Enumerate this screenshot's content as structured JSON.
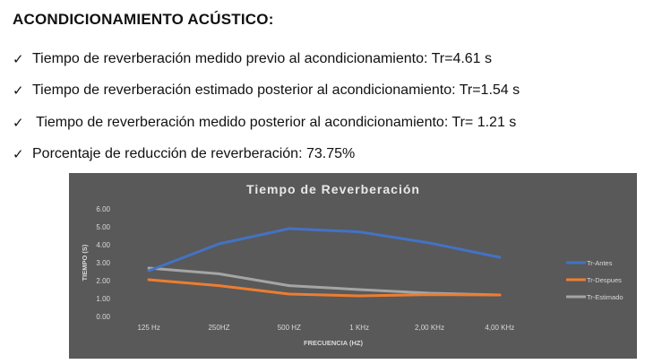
{
  "heading": "ACONDICIONAMIENTO ACÚSTICO:",
  "bullets": [
    {
      "icon": "check-icon",
      "text": "Tiempo de reverberación medido previo al acondicionamiento: Tr=4.61 s"
    },
    {
      "icon": "check-icon",
      "text": "Tiempo de reverberación estimado posterior al acondicionamiento: Tr=1.54 s"
    },
    {
      "icon": "check-icon",
      "text": " Tiempo de reverberación medido posterior al acondicionamiento: Tr= 1.21 s"
    },
    {
      "icon": "check-icon",
      "text": "Porcentaje de reducción de reverberación: 73.75%"
    }
  ],
  "chart_data": {
    "type": "line",
    "title": "Tiempo de Reverberación",
    "xlabel": "FRECUENCIA (HZ)",
    "ylabel": "TIEMPO (S)",
    "categories": [
      "125 Hz",
      "250HZ",
      "500 HZ",
      "1 KHz",
      "2,00 KHz",
      "4,00 KHz"
    ],
    "ylim": [
      0,
      6
    ],
    "yticks": [
      "0.00",
      "1.00",
      "2.00",
      "3.00",
      "4.00",
      "5.00",
      "6.00"
    ],
    "grid": false,
    "legend_position": "right",
    "series": [
      {
        "name": "Tr-Antes",
        "color": "#4472c4",
        "values": [
          2.55,
          4.05,
          4.9,
          4.72,
          4.1,
          3.3
        ]
      },
      {
        "name": "Tr-Despues",
        "color": "#ed7d31",
        "values": [
          2.05,
          1.72,
          1.25,
          1.15,
          1.22,
          1.2
        ]
      },
      {
        "name": "Tr-Estimado",
        "color": "#a5a5a5",
        "values": [
          2.7,
          2.38,
          1.72,
          1.5,
          1.3,
          1.2
        ]
      }
    ],
    "background": "#595959"
  }
}
